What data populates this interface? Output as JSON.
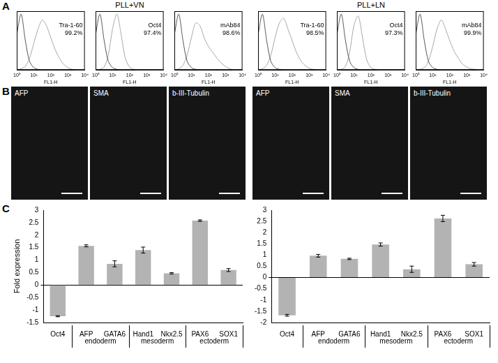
{
  "panel_labels": [
    "A",
    "B",
    "C"
  ],
  "conditions": [
    "PLL+VN",
    "PLL+LN"
  ],
  "images": {
    "labels": [
      "AFP",
      "SMA",
      "b-III-Tubulin"
    ]
  },
  "chart_data": [
    {
      "type": "line",
      "log": "x",
      "tick_labels": "x",
      "grid": false,
      "xlabel": "FL1-H",
      "annotations": [
        "Tra-1-60",
        "99.2%"
      ],
      "xlim": [
        1,
        10000
      ],
      "xticks": [
        {
          "value": 1,
          "label": "10⁰"
        },
        {
          "value": 10,
          "label": "10¹"
        },
        {
          "value": 100,
          "label": "10²"
        },
        {
          "value": 1000,
          "label": "10³"
        },
        {
          "value": 10000,
          "label": "10⁴"
        }
      ],
      "ylim": [
        0,
        100
      ],
      "x": [
        1,
        1.8,
        3.2,
        5.6,
        10,
        18,
        32,
        56,
        100,
        180,
        320,
        560,
        1000,
        1800,
        3200,
        5600,
        10000
      ],
      "series": [
        {
          "color": "#555555",
          "values": [
            60,
            95,
            50,
            15,
            4,
            1,
            0,
            0,
            0,
            0,
            0,
            0,
            0,
            0,
            0,
            0,
            0
          ]
        },
        {
          "color": "#a8a8a8",
          "values": [
            0,
            2,
            6,
            20,
            45,
            70,
            85,
            75,
            55,
            35,
            20,
            10,
            4,
            1,
            0,
            0,
            0
          ]
        }
      ]
    },
    {
      "type": "line",
      "log": "x",
      "tick_labels": "x",
      "grid": false,
      "xlabel": "FL1-H",
      "annotations": [
        "Oct4",
        "97.4%"
      ],
      "xlim": [
        1,
        10000
      ],
      "xticks": [
        {
          "value": 1,
          "label": "10⁰"
        },
        {
          "value": 10,
          "label": "10¹"
        },
        {
          "value": 100,
          "label": "10²"
        },
        {
          "value": 1000,
          "label": "10³"
        },
        {
          "value": 10000,
          "label": "10⁴"
        }
      ],
      "ylim": [
        0,
        100
      ],
      "x": [
        1,
        1.8,
        3.2,
        5.6,
        10,
        18,
        32,
        56,
        100,
        180,
        320,
        560,
        1000,
        1800,
        3200,
        5600,
        10000
      ],
      "series": [
        {
          "color": "#555555",
          "values": [
            60,
            95,
            50,
            15,
            4,
            1,
            0,
            0,
            0,
            0,
            0,
            0,
            0,
            0,
            0,
            0,
            0
          ]
        },
        {
          "color": "#a8a8a8",
          "values": [
            0,
            1,
            5,
            25,
            70,
            95,
            60,
            20,
            5,
            1,
            0,
            0,
            0,
            0,
            0,
            0,
            0
          ]
        }
      ]
    },
    {
      "type": "line",
      "log": "x",
      "tick_labels": "x",
      "grid": false,
      "xlabel": "FL1-H",
      "annotations": [
        "mAb84",
        "98.6%"
      ],
      "xlim": [
        1,
        10000
      ],
      "xticks": [
        {
          "value": 1,
          "label": "10⁰"
        },
        {
          "value": 10,
          "label": "10¹"
        },
        {
          "value": 100,
          "label": "10²"
        },
        {
          "value": 1000,
          "label": "10³"
        },
        {
          "value": 10000,
          "label": "10⁴"
        }
      ],
      "ylim": [
        0,
        100
      ],
      "x": [
        1,
        1.8,
        3.2,
        5.6,
        10,
        18,
        32,
        56,
        100,
        180,
        320,
        560,
        1000,
        1800,
        3200,
        5600,
        10000
      ],
      "series": [
        {
          "color": "#555555",
          "values": [
            60,
            95,
            50,
            15,
            4,
            1,
            0,
            0,
            0,
            0,
            0,
            0,
            0,
            0,
            0,
            0,
            0
          ]
        },
        {
          "color": "#a8a8a8",
          "values": [
            0,
            2,
            8,
            25,
            55,
            80,
            75,
            55,
            40,
            30,
            20,
            12,
            6,
            2,
            0,
            0,
            0
          ]
        }
      ]
    },
    {
      "type": "line",
      "log": "x",
      "tick_labels": "x",
      "grid": false,
      "xlabel": "FL1-H",
      "annotations": [
        "Tra-1-60",
        "98.5%"
      ],
      "xlim": [
        1,
        10000
      ],
      "xticks": [
        {
          "value": 1,
          "label": "10⁰"
        },
        {
          "value": 10,
          "label": "10¹"
        },
        {
          "value": 100,
          "label": "10²"
        },
        {
          "value": 1000,
          "label": "10³"
        },
        {
          "value": 10000,
          "label": "10⁴"
        }
      ],
      "ylim": [
        0,
        100
      ],
      "x": [
        1,
        1.8,
        3.2,
        5.6,
        10,
        18,
        32,
        56,
        100,
        180,
        320,
        560,
        1000,
        1800,
        3200,
        5600,
        10000
      ],
      "series": [
        {
          "color": "#555555",
          "values": [
            60,
            95,
            50,
            15,
            4,
            1,
            0,
            0,
            0,
            0,
            0,
            0,
            0,
            0,
            0,
            0,
            0
          ]
        },
        {
          "color": "#a8a8a8",
          "values": [
            0,
            2,
            8,
            25,
            55,
            80,
            88,
            70,
            50,
            30,
            16,
            8,
            3,
            1,
            0,
            0,
            0
          ]
        }
      ]
    },
    {
      "type": "line",
      "log": "x",
      "tick_labels": "x",
      "grid": false,
      "xlabel": "FL1-H",
      "annotations": [
        "Oct4",
        "97.3%"
      ],
      "xlim": [
        1,
        10000
      ],
      "xticks": [
        {
          "value": 1,
          "label": "10⁰"
        },
        {
          "value": 10,
          "label": "10¹"
        },
        {
          "value": 100,
          "label": "10²"
        },
        {
          "value": 1000,
          "label": "10³"
        },
        {
          "value": 10000,
          "label": "10⁴"
        }
      ],
      "ylim": [
        0,
        100
      ],
      "x": [
        1,
        1.8,
        3.2,
        5.6,
        10,
        18,
        32,
        56,
        100,
        180,
        320,
        560,
        1000,
        1800,
        3200,
        5600,
        10000
      ],
      "series": [
        {
          "color": "#555555",
          "values": [
            60,
            95,
            50,
            15,
            4,
            1,
            0,
            0,
            0,
            0,
            0,
            0,
            0,
            0,
            0,
            0,
            0
          ]
        },
        {
          "color": "#a8a8a8",
          "values": [
            0,
            1,
            6,
            30,
            75,
            92,
            55,
            18,
            4,
            1,
            0,
            0,
            0,
            0,
            0,
            0,
            0
          ]
        }
      ]
    },
    {
      "type": "line",
      "log": "x",
      "tick_labels": "x",
      "grid": false,
      "xlabel": "FL1-H",
      "annotations": [
        "mAb84",
        "99.9%"
      ],
      "xlim": [
        1,
        10000
      ],
      "xticks": [
        {
          "value": 1,
          "label": "10⁰"
        },
        {
          "value": 10,
          "label": "10¹"
        },
        {
          "value": 100,
          "label": "10²"
        },
        {
          "value": 1000,
          "label": "10³"
        },
        {
          "value": 10000,
          "label": "10⁴"
        }
      ],
      "ylim": [
        0,
        100
      ],
      "x": [
        1,
        1.8,
        3.2,
        5.6,
        10,
        18,
        32,
        56,
        100,
        180,
        320,
        560,
        1000,
        1800,
        3200,
        5600,
        10000
      ],
      "series": [
        {
          "color": "#555555",
          "values": [
            60,
            95,
            50,
            15,
            4,
            1,
            0,
            0,
            0,
            0,
            0,
            0,
            0,
            0,
            0,
            0,
            0
          ]
        },
        {
          "color": "#a8a8a8",
          "values": [
            0,
            1,
            4,
            15,
            40,
            70,
            85,
            70,
            50,
            32,
            20,
            10,
            5,
            2,
            1,
            0,
            0
          ]
        }
      ]
    },
    {
      "type": "bar",
      "ylabel": "Fold expression",
      "color": "#b3b3b3",
      "grid": false,
      "categories": [
        "Oct4",
        "AFP",
        "GATA6",
        "Hand1",
        "Nkx2.5",
        "PAX6",
        "SOX1"
      ],
      "values": [
        -1.25,
        1.57,
        0.85,
        1.4,
        0.47,
        2.58,
        0.6
      ],
      "errors": [
        0.02,
        0.04,
        0.12,
        0.12,
        0.03,
        0.03,
        0.06
      ],
      "groups": [
        {
          "label": "endoderm",
          "categories": [
            "AFP",
            "GATA6"
          ]
        },
        {
          "label": "mesoderm",
          "categories": [
            "Hand1",
            "Nkx2.5"
          ]
        },
        {
          "label": "ectoderm",
          "categories": [
            "PAX6",
            "SOX1"
          ]
        }
      ],
      "ylim": [
        -1.5,
        3
      ],
      "yticks": [
        -1.5,
        -1,
        -0.5,
        0,
        0.5,
        1,
        1.5,
        2,
        2.5,
        3
      ]
    },
    {
      "type": "bar",
      "color": "#b3b3b3",
      "grid": false,
      "categories": [
        "Oct4",
        "AFP",
        "GATA6",
        "Hand1",
        "Nkx2.5",
        "PAX6",
        "SOX1"
      ],
      "values": [
        -1.68,
        0.97,
        0.83,
        1.47,
        0.37,
        2.63,
        0.59
      ],
      "errors": [
        0.04,
        0.06,
        0.03,
        0.07,
        0.14,
        0.14,
        0.08
      ],
      "groups": [
        {
          "label": "endoderm",
          "categories": [
            "AFP",
            "GATA6"
          ]
        },
        {
          "label": "mesoderm",
          "categories": [
            "Hand1",
            "Nkx2.5"
          ]
        },
        {
          "label": "ectoderm",
          "categories": [
            "PAX6",
            "SOX1"
          ]
        }
      ],
      "ylim": [
        -2,
        3
      ],
      "yticks": [
        -2,
        -1.5,
        -1,
        -0.5,
        0,
        0.5,
        1,
        1.5,
        2,
        2.5,
        3
      ]
    }
  ]
}
